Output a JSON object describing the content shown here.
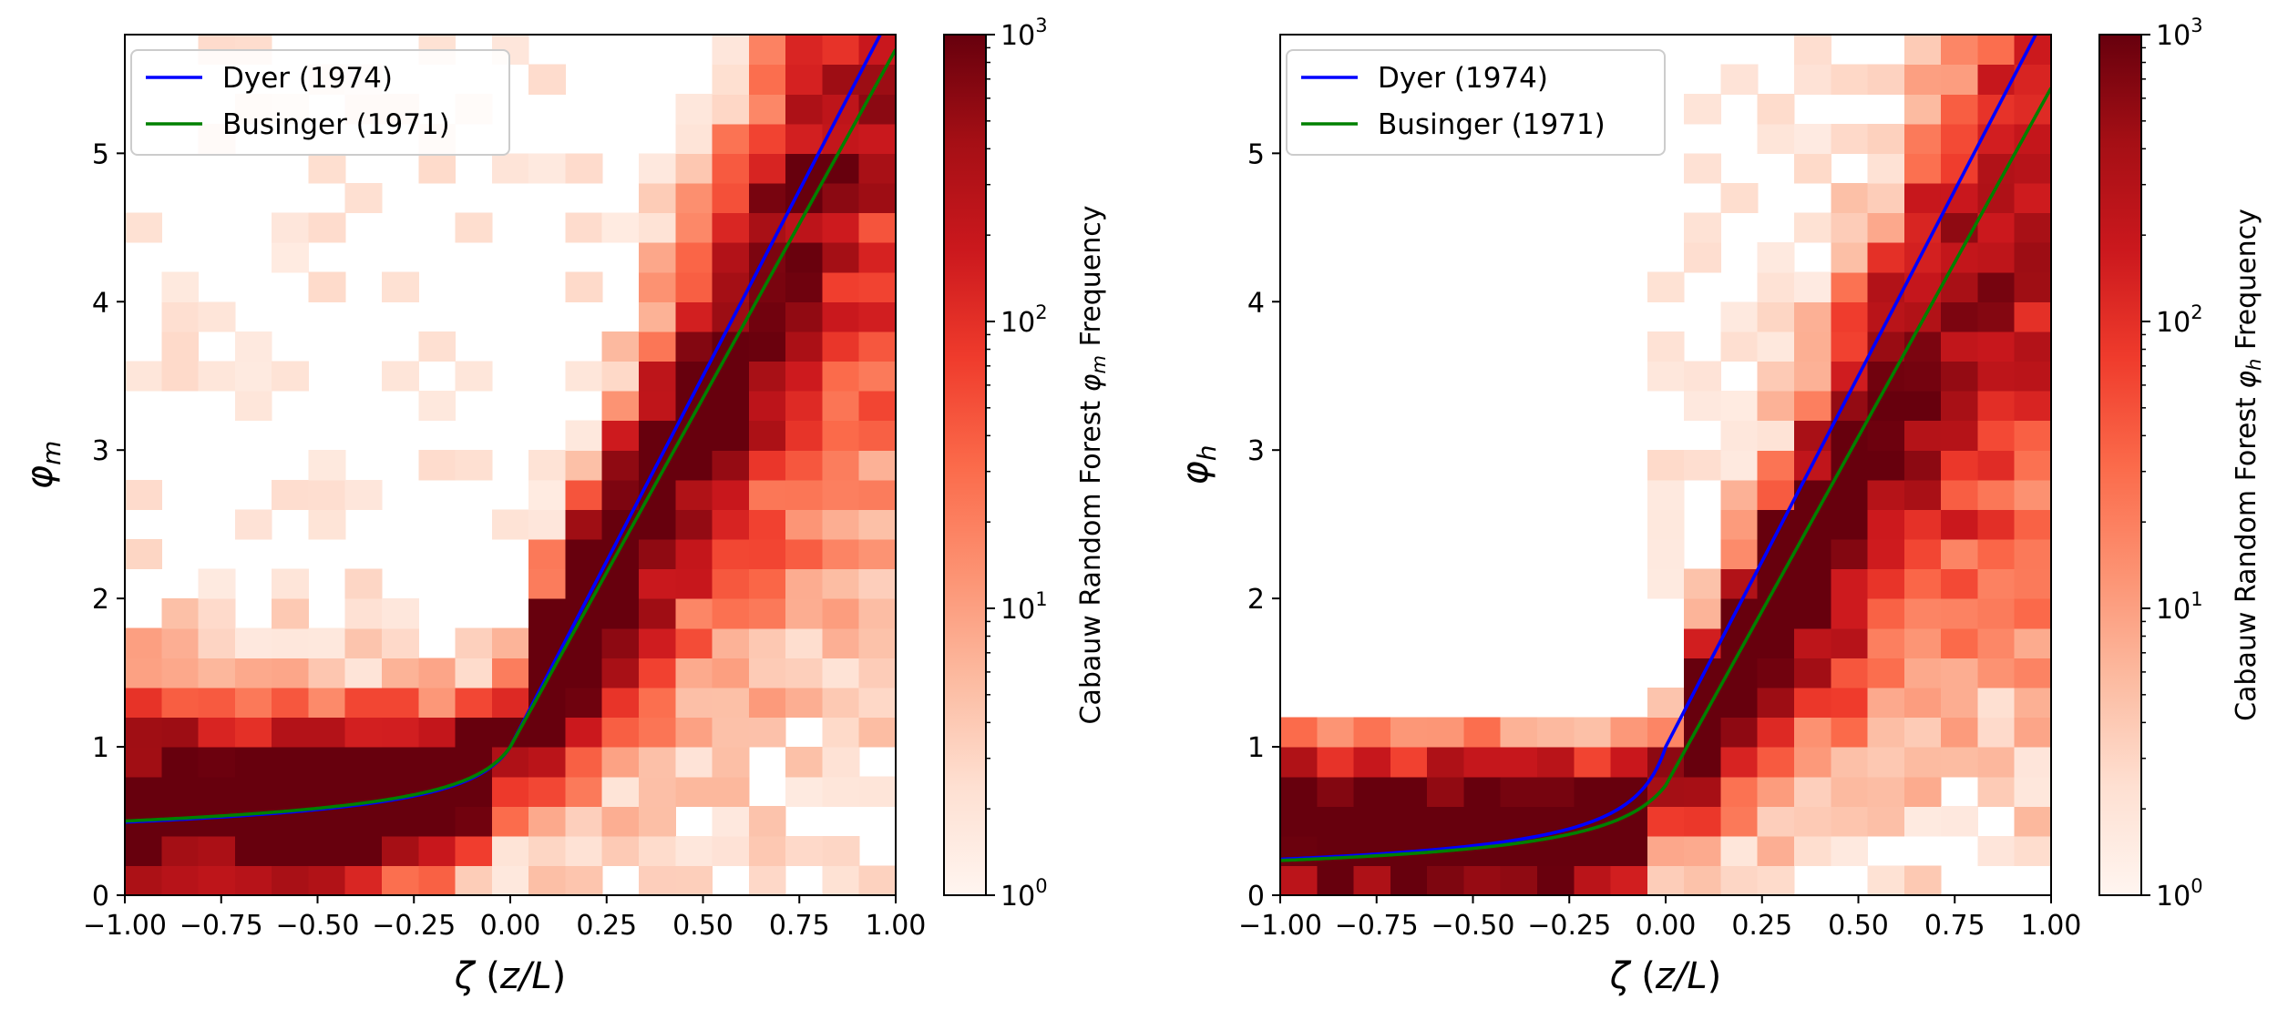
{
  "chart_data": [
    {
      "type": "heatmap",
      "panel": "left",
      "xlabel": "ζ (z/L)",
      "ylabel": "φ_m",
      "xlim": [
        -1.0,
        1.0
      ],
      "ylim": [
        0,
        5.8
      ],
      "xticks": [
        "−1.00",
        "−0.75",
        "−0.50",
        "−0.25",
        "0.00",
        "0.25",
        "0.50",
        "0.75",
        "1.00"
      ],
      "xtick_values": [
        -1.0,
        -0.75,
        -0.5,
        -0.25,
        0.0,
        0.25,
        0.5,
        0.75,
        1.0
      ],
      "yticks": [
        "0",
        "1",
        "2",
        "3",
        "4",
        "5"
      ],
      "ytick_values": [
        0,
        1,
        2,
        3,
        4,
        5
      ],
      "colormap": "Reds",
      "color_scale": "log",
      "colorbar": {
        "label": "Cabauw Random Forest φ_m Frequency",
        "range": [
          1,
          1000
        ],
        "ticks": [
          {
            "base": "10",
            "exp": "0"
          },
          {
            "base": "10",
            "exp": "1"
          },
          {
            "base": "10",
            "exp": "2"
          },
          {
            "base": "10",
            "exp": "3"
          }
        ]
      },
      "legend": {
        "position": "upper-left",
        "entries": [
          {
            "label": "Dyer (1974)",
            "color": "#0000ff"
          },
          {
            "label": "Businger (1971)",
            "color": "#008000"
          }
        ]
      },
      "series": [
        {
          "name": "Dyer (1974)",
          "color": "#0000ff",
          "model": "dyer_m"
        },
        {
          "name": "Businger (1971)",
          "color": "#008000",
          "model": "businger_m"
        }
      ]
    },
    {
      "type": "heatmap",
      "panel": "right",
      "xlabel": "ζ (z/L)",
      "ylabel": "φ_h",
      "xlim": [
        -1.0,
        1.0
      ],
      "ylim": [
        0,
        5.8
      ],
      "xticks": [
        "−1.00",
        "−0.75",
        "−0.50",
        "−0.25",
        "0.00",
        "0.25",
        "0.50",
        "0.75",
        "1.00"
      ],
      "xtick_values": [
        -1.0,
        -0.75,
        -0.5,
        -0.25,
        0.0,
        0.25,
        0.5,
        0.75,
        1.0
      ],
      "yticks": [
        "0",
        "1",
        "2",
        "3",
        "4",
        "5"
      ],
      "ytick_values": [
        0,
        1,
        2,
        3,
        4,
        5
      ],
      "colormap": "Reds",
      "color_scale": "log",
      "colorbar": {
        "label": "Cabauw Random Forest φ_h Frequency",
        "range": [
          1,
          1000
        ],
        "ticks": [
          {
            "base": "10",
            "exp": "0"
          },
          {
            "base": "10",
            "exp": "1"
          },
          {
            "base": "10",
            "exp": "2"
          },
          {
            "base": "10",
            "exp": "3"
          }
        ]
      },
      "legend": {
        "position": "upper-left",
        "entries": [
          {
            "label": "Dyer (1974)",
            "color": "#0000ff"
          },
          {
            "label": "Businger (1971)",
            "color": "#008000"
          }
        ]
      },
      "series": [
        {
          "name": "Dyer (1974)",
          "color": "#0000ff",
          "model": "dyer_h"
        },
        {
          "name": "Businger (1971)",
          "color": "#008000",
          "model": "businger_h"
        }
      ]
    }
  ]
}
